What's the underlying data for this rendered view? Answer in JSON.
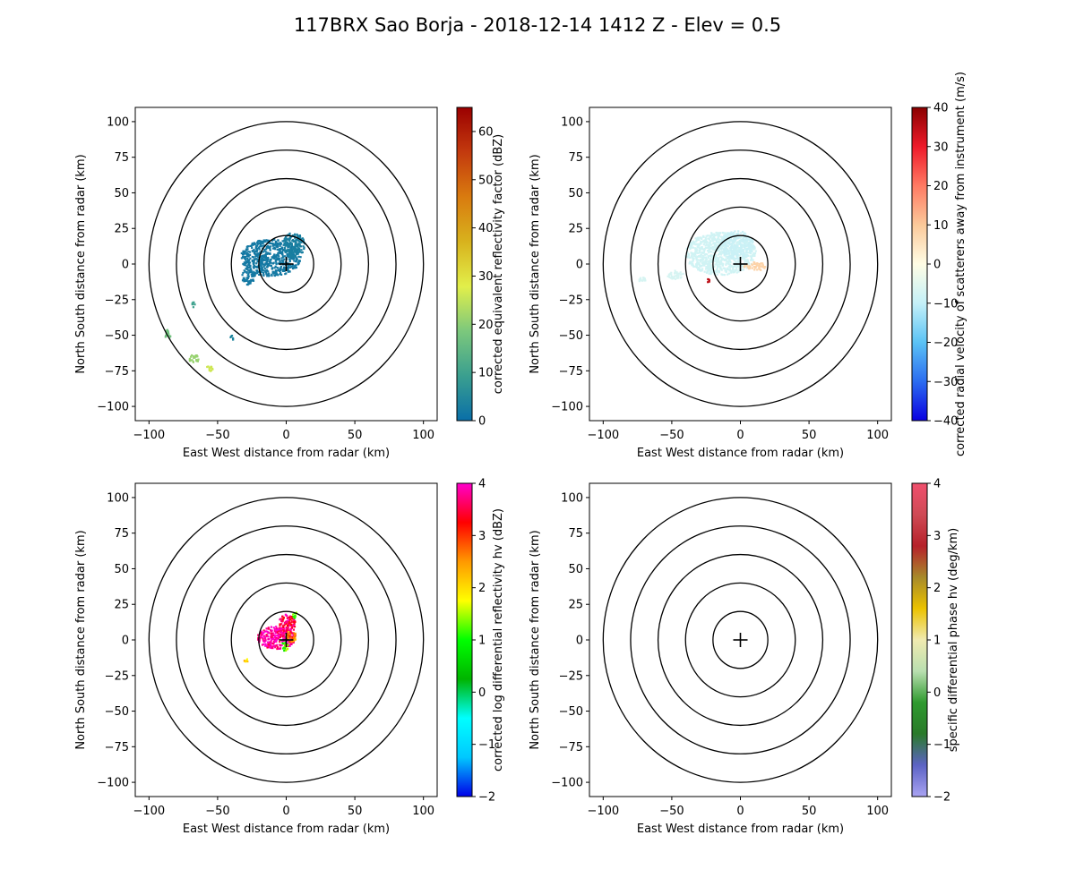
{
  "figure": {
    "title": "117BRX Sao Borja - 2018-12-14 1412 Z -  Elev = 0.5"
  },
  "chart_data": [
    {
      "type": "heatmap",
      "id": "reflectivity",
      "xlabel": "East West distance from radar (km)",
      "ylabel": "North South distance from radar (km)",
      "xlim": [
        -110,
        110
      ],
      "ylim": [
        -110,
        110
      ],
      "xticks": [
        -100,
        -50,
        0,
        50,
        100
      ],
      "yticks": [
        -100,
        -75,
        -50,
        -25,
        0,
        25,
        50,
        75,
        100
      ],
      "range_rings_km": [
        20,
        40,
        60,
        80,
        100
      ],
      "colorbar": {
        "label": "corrected equivalent reflectivity factor (dBZ)",
        "range": [
          0,
          65
        ],
        "ticks": [
          0,
          10,
          20,
          30,
          40,
          50,
          60
        ],
        "colors": [
          "#0a6fa8",
          "#3a9f8f",
          "#7cc87c",
          "#e2ef4a",
          "#d8b21d",
          "#d97b0f",
          "#c33a0e",
          "#9b0000"
        ]
      },
      "echoes": [
        {
          "x": -12,
          "y": 5,
          "rx": 22,
          "ry": 13,
          "value": 2
        },
        {
          "x": 5,
          "y": 14,
          "rx": 8,
          "ry": 9,
          "value": 3
        },
        {
          "x": -28,
          "y": -8,
          "rx": 5,
          "ry": 6,
          "value": 2
        },
        {
          "x": -68,
          "y": -28,
          "rx": 1.5,
          "ry": 2.5,
          "value": 10
        },
        {
          "x": -87,
          "y": -49,
          "rx": 2,
          "ry": 4,
          "value": 17
        },
        {
          "x": -68,
          "y": -66,
          "rx": 4,
          "ry": 3,
          "value": 21
        },
        {
          "x": -57,
          "y": -73,
          "rx": 3,
          "ry": 2,
          "value": 26
        },
        {
          "x": -40,
          "y": -51,
          "rx": 1.5,
          "ry": 1.5,
          "value": 4
        }
      ]
    },
    {
      "type": "heatmap",
      "id": "velocity",
      "xlabel": "East West distance from radar (km)",
      "ylabel": "North South distance from radar (km)",
      "xlim": [
        -110,
        110
      ],
      "ylim": [
        -110,
        110
      ],
      "xticks": [
        -100,
        -50,
        0,
        50,
        100
      ],
      "yticks": [
        -100,
        -75,
        -50,
        -25,
        0,
        25,
        50,
        75,
        100
      ],
      "range_rings_km": [
        20,
        40,
        60,
        80,
        100
      ],
      "colorbar": {
        "label": "corrected radial velocity of scatterers away from instrument (m/s)",
        "range": [
          -40,
          40
        ],
        "ticks": [
          -40,
          -30,
          -20,
          -10,
          0,
          10,
          20,
          30,
          40
        ],
        "colors": [
          "#0a00e0",
          "#2b6cf0",
          "#5bc3f5",
          "#c4f0f8",
          "#fffde5",
          "#fbc99a",
          "#ff7a63",
          "#ee1a2a",
          "#8a0000"
        ]
      },
      "echoes": [
        {
          "x": -15,
          "y": 8,
          "rx": 26,
          "ry": 15,
          "value": -8
        },
        {
          "x": -3,
          "y": 14,
          "rx": 12,
          "ry": 10,
          "value": -9
        },
        {
          "x": 10,
          "y": -1,
          "rx": 8,
          "ry": 3,
          "value": 8
        },
        {
          "x": -48,
          "y": -7,
          "rx": 6,
          "ry": 3,
          "value": -7
        },
        {
          "x": -72,
          "y": -10,
          "rx": 3,
          "ry": 2,
          "value": -7
        },
        {
          "x": -24,
          "y": -11,
          "rx": 1.2,
          "ry": 1.2,
          "value": 35
        }
      ]
    },
    {
      "type": "heatmap",
      "id": "zdr",
      "xlabel": "East West distance from radar (km)",
      "ylabel": "North South distance from radar (km)",
      "xlim": [
        -110,
        110
      ],
      "ylim": [
        -110,
        110
      ],
      "xticks": [
        -100,
        -50,
        0,
        50,
        100
      ],
      "yticks": [
        -100,
        -75,
        -50,
        -25,
        0,
        25,
        50,
        75,
        100
      ],
      "range_rings_km": [
        20,
        40,
        60,
        80,
        100
      ],
      "colorbar": {
        "label": "corrected log differential reflectivity hv (dBZ)",
        "range": [
          -2,
          4
        ],
        "ticks": [
          -2,
          -1,
          0,
          1,
          2,
          3,
          4
        ],
        "colors": [
          "#0000e8",
          "#00c8ff",
          "#00ffff",
          "#00b400",
          "#00ff00",
          "#ffff00",
          "#ff9900",
          "#ff0000",
          "#ff00cc"
        ]
      },
      "echoes": [
        {
          "x": -8,
          "y": 2,
          "rx": 14,
          "ry": 8,
          "value": 3.9
        },
        {
          "x": 0,
          "y": 12,
          "rx": 6,
          "ry": 7,
          "value": 3.6
        },
        {
          "x": 3,
          "y": 3,
          "rx": 4,
          "ry": 4,
          "value": 2.6
        },
        {
          "x": -2,
          "y": -4,
          "rx": 3,
          "ry": 3,
          "value": 1.1
        },
        {
          "x": 6,
          "y": 18,
          "rx": 2,
          "ry": 2,
          "value": 1.2
        },
        {
          "x": -30,
          "y": -14,
          "rx": 1.2,
          "ry": 1.5,
          "value": 2.2
        }
      ]
    },
    {
      "type": "heatmap",
      "id": "kdp",
      "xlabel": "East West distance from radar (km)",
      "ylabel": "North South distance from radar (km)",
      "xlim": [
        -110,
        110
      ],
      "ylim": [
        -110,
        110
      ],
      "xticks": [
        -100,
        -50,
        0,
        50,
        100
      ],
      "yticks": [
        -100,
        -75,
        -50,
        -25,
        0,
        25,
        50,
        75,
        100
      ],
      "range_rings_km": [
        20,
        40,
        60,
        80,
        100
      ],
      "colorbar": {
        "label": "specific differential phase hv (deg/km)",
        "range": [
          -2,
          4
        ],
        "ticks": [
          -2,
          -1,
          0,
          1,
          2,
          3,
          4
        ],
        "colors": [
          "#a9a3f2",
          "#5c63c4",
          "#2a7a2a",
          "#2f9a2f",
          "#b9dfb0",
          "#f0eab0",
          "#ebc200",
          "#a78a2a",
          "#b6212a",
          "#cf4a55",
          "#f0506e"
        ]
      },
      "echoes": []
    }
  ]
}
